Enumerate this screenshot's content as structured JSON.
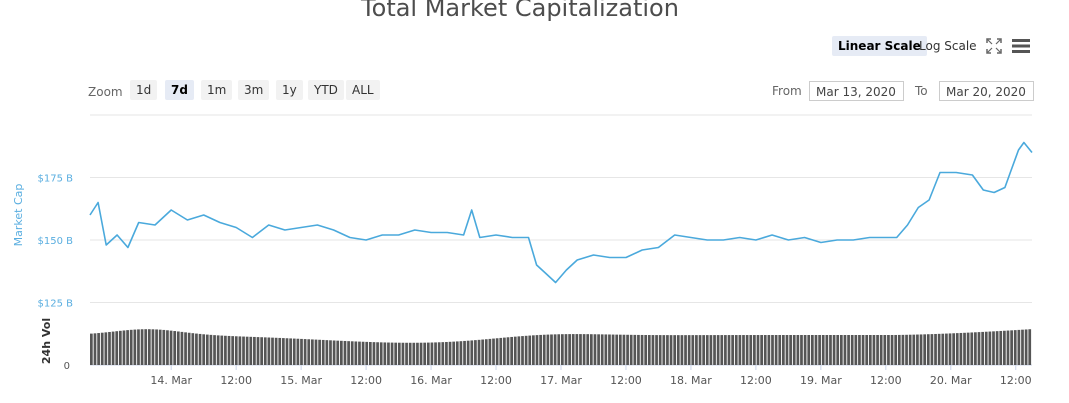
{
  "chart_data": {
    "type": "line",
    "title": "Total Market Capitalization",
    "ylabel": "Market Cap",
    "ylabel_volume": "24h Vol",
    "x_tick_labels": [
      "14. Mar",
      "12:00",
      "15. Mar",
      "12:00",
      "16. Mar",
      "12:00",
      "17. Mar",
      "12:00",
      "18. Mar",
      "12:00",
      "19. Mar",
      "12:00",
      "20. Mar",
      "12:00"
    ],
    "y_tick_labels": [
      "$125 B",
      "$150 B",
      "$175 B"
    ],
    "volume_tick_labels": [
      "0"
    ],
    "ylim": [
      120,
      200
    ],
    "xlim_days": [
      "2020-03-13 09:00",
      "2020-03-20 15:00"
    ],
    "series": [
      {
        "color": "#4aa9dc",
        "points": [
          [
            "2020-03-13 09:00",
            160
          ],
          [
            "2020-03-13 10:30",
            165
          ],
          [
            "2020-03-13 12:00",
            148
          ],
          [
            "2020-03-13 14:00",
            152
          ],
          [
            "2020-03-13 16:00",
            147
          ],
          [
            "2020-03-13 18:00",
            157
          ],
          [
            "2020-03-13 21:00",
            156
          ],
          [
            "2020-03-14 00:00",
            162
          ],
          [
            "2020-03-14 03:00",
            158
          ],
          [
            "2020-03-14 06:00",
            160
          ],
          [
            "2020-03-14 09:00",
            157
          ],
          [
            "2020-03-14 12:00",
            155
          ],
          [
            "2020-03-14 15:00",
            151
          ],
          [
            "2020-03-14 18:00",
            156
          ],
          [
            "2020-03-14 21:00",
            154
          ],
          [
            "2020-03-15 00:00",
            155
          ],
          [
            "2020-03-15 03:00",
            156
          ],
          [
            "2020-03-15 06:00",
            154
          ],
          [
            "2020-03-15 09:00",
            151
          ],
          [
            "2020-03-15 12:00",
            150
          ],
          [
            "2020-03-15 15:00",
            152
          ],
          [
            "2020-03-15 18:00",
            152
          ],
          [
            "2020-03-15 21:00",
            154
          ],
          [
            "2020-03-16 00:00",
            153
          ],
          [
            "2020-03-16 03:00",
            153
          ],
          [
            "2020-03-16 06:00",
            152
          ],
          [
            "2020-03-16 07:30",
            162
          ],
          [
            "2020-03-16 09:00",
            151
          ],
          [
            "2020-03-16 12:00",
            152
          ],
          [
            "2020-03-16 15:00",
            151
          ],
          [
            "2020-03-16 18:00",
            151
          ],
          [
            "2020-03-16 19:30",
            140
          ],
          [
            "2020-03-16 21:00",
            137
          ],
          [
            "2020-03-16 23:00",
            133
          ],
          [
            "2020-03-17 01:00",
            138
          ],
          [
            "2020-03-17 03:00",
            142
          ],
          [
            "2020-03-17 06:00",
            144
          ],
          [
            "2020-03-17 09:00",
            143
          ],
          [
            "2020-03-17 12:00",
            143
          ],
          [
            "2020-03-17 15:00",
            146
          ],
          [
            "2020-03-17 18:00",
            147
          ],
          [
            "2020-03-17 21:00",
            152
          ],
          [
            "2020-03-18 00:00",
            151
          ],
          [
            "2020-03-18 03:00",
            150
          ],
          [
            "2020-03-18 06:00",
            150
          ],
          [
            "2020-03-18 09:00",
            151
          ],
          [
            "2020-03-18 12:00",
            150
          ],
          [
            "2020-03-18 15:00",
            152
          ],
          [
            "2020-03-18 18:00",
            150
          ],
          [
            "2020-03-18 21:00",
            151
          ],
          [
            "2020-03-19 00:00",
            149
          ],
          [
            "2020-03-19 03:00",
            150
          ],
          [
            "2020-03-19 06:00",
            150
          ],
          [
            "2020-03-19 09:00",
            151
          ],
          [
            "2020-03-19 12:00",
            151
          ],
          [
            "2020-03-19 14:00",
            151
          ],
          [
            "2020-03-19 16:00",
            156
          ],
          [
            "2020-03-19 18:00",
            163
          ],
          [
            "2020-03-19 20:00",
            166
          ],
          [
            "2020-03-19 22:00",
            177
          ],
          [
            "2020-03-20 01:00",
            177
          ],
          [
            "2020-03-20 04:00",
            176
          ],
          [
            "2020-03-20 06:00",
            170
          ],
          [
            "2020-03-20 08:00",
            169
          ],
          [
            "2020-03-20 10:00",
            171
          ],
          [
            "2020-03-20 11:00",
            177
          ],
          [
            "2020-03-20 12:30",
            186
          ],
          [
            "2020-03-20 13:30",
            189
          ],
          [
            "2020-03-20 15:00",
            185
          ]
        ]
      }
    ],
    "scale_buttons": [
      "Linear Scale",
      "Log Scale"
    ],
    "active_scale": "Linear Scale"
  },
  "zoom": {
    "label": "Zoom",
    "buttons": [
      "1d",
      "7d",
      "1m",
      "3m",
      "1y",
      "YTD",
      "ALL"
    ],
    "active": "7d"
  },
  "range": {
    "from_label": "From",
    "from_value": "Mar 13, 2020",
    "to_label": "To",
    "to_value": "Mar 20, 2020"
  },
  "colors": {
    "line": "#4aa9dc",
    "volume_bar": "#555555",
    "grid": "#e6e6e6"
  },
  "icons": {
    "fullscreen": "fullscreen-icon",
    "menu": "hamburger-menu-icon"
  }
}
